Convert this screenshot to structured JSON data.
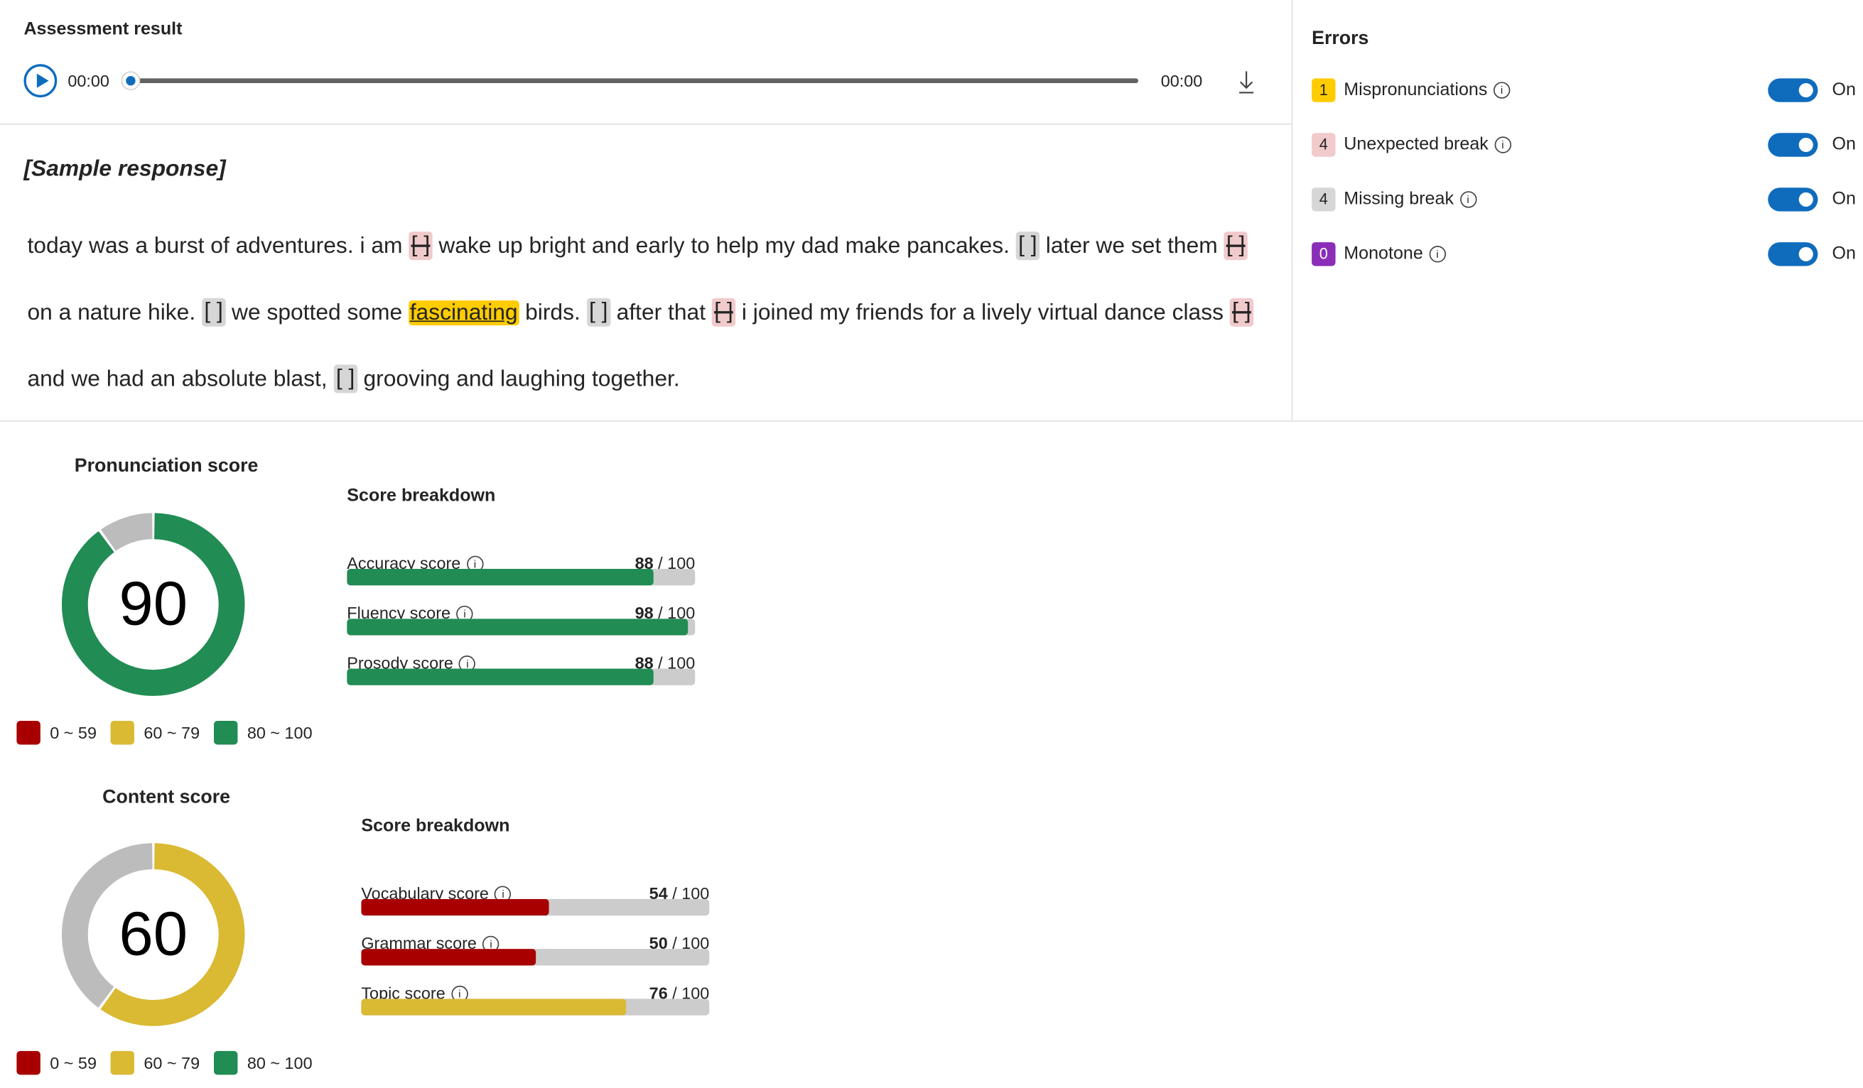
{
  "header": {
    "title": "Assessment result"
  },
  "player": {
    "current_time": "00:00",
    "total_time": "00:00",
    "progress": 0,
    "play_icon": "play-icon",
    "download_icon": "download-icon"
  },
  "response": {
    "label": "[Sample response]",
    "marker_text": "[ ]",
    "segments": [
      {
        "kind": "text",
        "t": "today was a burst of adventures. i am "
      },
      {
        "kind": "unexpected"
      },
      {
        "kind": "text",
        "t": " wake up bright and early to help my dad make pancakes. "
      },
      {
        "kind": "missing"
      },
      {
        "kind": "text",
        "t": " later we set them "
      },
      {
        "kind": "unexpected"
      },
      {
        "kind": "text",
        "t": " on a nature hike. "
      },
      {
        "kind": "missing"
      },
      {
        "kind": "text",
        "t": " we spotted some "
      },
      {
        "kind": "mispron",
        "t": "fascinating"
      },
      {
        "kind": "text",
        "t": " birds. "
      },
      {
        "kind": "missing"
      },
      {
        "kind": "text",
        "t": " after that "
      },
      {
        "kind": "unexpected"
      },
      {
        "kind": "text",
        "t": " i joined my friends for a lively virtual dance class "
      },
      {
        "kind": "unexpected"
      },
      {
        "kind": "text",
        "t": " and we had an absolute blast, "
      },
      {
        "kind": "missing"
      },
      {
        "kind": "text",
        "t": " grooving and laughing together."
      }
    ]
  },
  "errors": {
    "title": "Errors",
    "items": [
      {
        "count": "1",
        "label": "Mispronunciations",
        "color": "#ffcc00",
        "text_color": "#242424",
        "toggle": true,
        "toggle_label": "On"
      },
      {
        "count": "4",
        "label": "Unexpected break",
        "color": "#f1cacc",
        "text_color": "#242424",
        "toggle": true,
        "toggle_label": "On"
      },
      {
        "count": "4",
        "label": "Missing break",
        "color": "#d6d6d6",
        "text_color": "#242424",
        "toggle": true,
        "toggle_label": "On"
      },
      {
        "count": "0",
        "label": "Monotone",
        "color": "#8a2db8",
        "text_color": "#ffffff",
        "toggle": true,
        "toggle_label": "On"
      }
    ]
  },
  "colors": {
    "low": "#a80000",
    "mid": "#dab933",
    "high": "#218c53",
    "remainder": "#bcbcbc",
    "bar_bg": "#cccccc",
    "accent": "#0f6cbd"
  },
  "legend": [
    {
      "label": "0 ~ 59",
      "color": "#a80000"
    },
    {
      "label": "60 ~ 79",
      "color": "#dab933"
    },
    {
      "label": "80 ~ 100",
      "color": "#218c53"
    }
  ],
  "pronunciation": {
    "title": "Pronunciation score",
    "score": 90,
    "score_text": "90",
    "breakdown_title": "Score breakdown",
    "items": [
      {
        "label": "Accuracy score",
        "value": 88,
        "value_text": "88",
        "max_text": " / 100"
      },
      {
        "label": "Fluency score",
        "value": 98,
        "value_text": "98",
        "max_text": " / 100"
      },
      {
        "label": "Prosody score",
        "value": 88,
        "value_text": "88",
        "max_text": " / 100"
      }
    ]
  },
  "content": {
    "title": "Content score",
    "score": 60,
    "score_text": "60",
    "breakdown_title": "Score breakdown",
    "items": [
      {
        "label": "Vocabulary score",
        "value": 54,
        "value_text": "54",
        "max_text": " / 100"
      },
      {
        "label": "Grammar score",
        "value": 50,
        "value_text": "50",
        "max_text": " / 100"
      },
      {
        "label": "Topic score",
        "value": 76,
        "value_text": "76",
        "max_text": " / 100"
      }
    ]
  }
}
